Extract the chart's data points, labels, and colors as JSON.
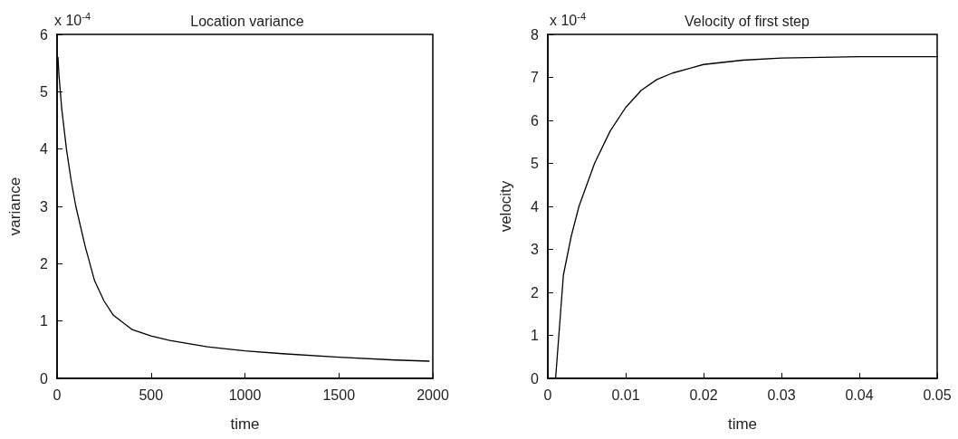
{
  "chart_data": [
    {
      "type": "line",
      "title": "Location variance",
      "xlabel": "time",
      "ylabel": "variance",
      "annotations": [
        "x 10$^{-4}$"
      ],
      "x": [
        5,
        10,
        25,
        50,
        75,
        100,
        150,
        200,
        250,
        300,
        400,
        500,
        600,
        800,
        1000,
        1200,
        1500,
        1800,
        1980
      ],
      "series": [
        {
          "color": "#000000",
          "values": [
            5.6,
            5.3,
            4.7,
            4.0,
            3.45,
            3.0,
            2.3,
            1.7,
            1.35,
            1.1,
            0.85,
            0.74,
            0.66,
            0.55,
            0.48,
            0.43,
            0.37,
            0.32,
            0.3
          ]
        }
      ],
      "xlim": [
        0,
        2000
      ],
      "xticks": [
        0,
        500,
        1000,
        1500,
        2000
      ],
      "ylim": [
        0,
        6
      ],
      "yticks": [
        0,
        1,
        2,
        3,
        4,
        5,
        6
      ],
      "marker": "none",
      "line_style": "solid"
    },
    {
      "type": "line",
      "title": "Velocity of first step",
      "xlabel": "time",
      "ylabel": "velocity",
      "annotations": [
        "x 10$^{-4}$"
      ],
      "x": [
        0.001,
        0.002,
        0.003,
        0.004,
        0.006,
        0.008,
        0.01,
        0.012,
        0.014,
        0.016,
        0.02,
        0.025,
        0.03,
        0.04,
        0.05
      ],
      "series": [
        {
          "color": "#000000",
          "values": [
            0,
            2.4,
            3.3,
            4.0,
            5.0,
            5.75,
            6.3,
            6.7,
            6.95,
            7.1,
            7.3,
            7.4,
            7.45,
            7.48,
            7.48
          ]
        }
      ],
      "xlim": [
        0,
        0.05
      ],
      "xticks": [
        0,
        0.01,
        0.02,
        0.03,
        0.04,
        0.05
      ],
      "ylim": [
        0,
        8
      ],
      "yticks": [
        0,
        1,
        2,
        3,
        4,
        5,
        6,
        7,
        8
      ],
      "marker": "none",
      "line_style": "solid"
    }
  ]
}
